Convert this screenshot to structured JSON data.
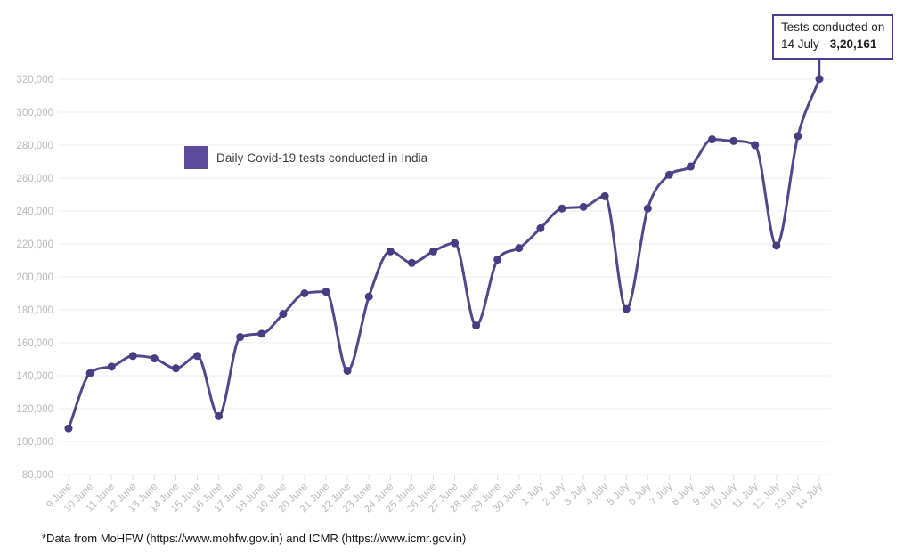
{
  "legend": {
    "label": "Daily Covid-19 tests conducted in India",
    "swatch_color": "#5c4a9c"
  },
  "annotation": {
    "line1": "Tests conducted on",
    "line2_prefix": "14 July - ",
    "value": "3,20,161"
  },
  "footer": {
    "text": "*Data from MoHFW (https://www.mohfw.gov.in) and ICMR (https://www.icmr.gov.in)"
  },
  "colors": {
    "line": "#53478c",
    "point": "#483c82",
    "grid": "#ececec",
    "tick": "#e0e0e0",
    "axis_text": "#b9b9b9",
    "annotation_border": "#4a3e8f",
    "leader": "#4a3e8f"
  },
  "chart_data": {
    "type": "line",
    "title": "Daily Covid-19 tests conducted in India",
    "legend_entries": [
      "Daily Covid-19 tests conducted in India"
    ],
    "legend_position": "inside top-left",
    "grid": "horizontal gridlines only",
    "xlabel": "",
    "ylabel": "",
    "ylim": [
      80000,
      320000
    ],
    "ytick_step": 20000,
    "categories": [
      "9 June",
      "10 June",
      "11 June",
      "12 June",
      "13 June",
      "14 June",
      "15 June",
      "16 June",
      "17 June",
      "18 June",
      "19 June",
      "20 June",
      "21 June",
      "22 June",
      "23 June",
      "24 June",
      "25 June",
      "26 June",
      "27 June",
      "28 June",
      "29 June",
      "30 June",
      "1 July",
      "2 July",
      "3 July",
      "4 July",
      "5 July",
      "6 July",
      "7 July",
      "8 July",
      "9 July",
      "10 July",
      "11 July",
      "12 July",
      "13 July",
      "14 July"
    ],
    "values": [
      108000,
      141500,
      145500,
      152000,
      150500,
      144500,
      152000,
      115500,
      163500,
      165500,
      177500,
      190000,
      191000,
      143000,
      188000,
      215500,
      208500,
      215500,
      220500,
      170500,
      210500,
      217500,
      229500,
      241500,
      242500,
      249000,
      180500,
      241500,
      262000,
      267000,
      283500,
      282500,
      280000,
      219000,
      285500,
      320161
    ],
    "annotated_point": {
      "category": "14 July",
      "value": 320161,
      "label": "Tests conducted on 14 July - 3,20,161"
    }
  }
}
